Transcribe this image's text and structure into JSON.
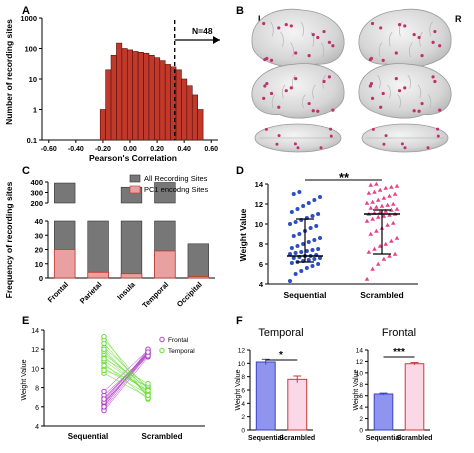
{
  "panel_letters": [
    "A",
    "B",
    "C",
    "D",
    "E",
    "F"
  ],
  "brain_panel": {
    "left_label": "L",
    "right_label": "R"
  },
  "chart_data": [
    {
      "panel": "A",
      "type": "bar",
      "xlabel": "Pearson's Correlation",
      "ylabel": "Number of recording sites",
      "yscale": "log",
      "ylim": [
        0.1,
        1000
      ],
      "xlim": [
        -0.65,
        0.65
      ],
      "x_ticks": [
        "-0.60",
        "-0.40",
        "-0.20",
        "0.00",
        "0.20",
        "0.40",
        "0.60"
      ],
      "y_ticks": [
        "0.1",
        "1",
        "10",
        "100",
        "1000"
      ],
      "bar_width": 0.04,
      "x": [
        -0.2,
        -0.16,
        -0.12,
        -0.08,
        -0.04,
        0.0,
        0.04,
        0.08,
        0.12,
        0.16,
        0.2,
        0.24,
        0.28,
        0.32,
        0.36,
        0.4,
        0.44,
        0.48,
        0.52
      ],
      "values": [
        1,
        20,
        60,
        150,
        100,
        90,
        80,
        75,
        70,
        60,
        50,
        40,
        30,
        25,
        20,
        10,
        6,
        3,
        1
      ],
      "threshold": 0.33,
      "annotation": "N=48",
      "color": "#c0392b"
    },
    {
      "panel": "C",
      "type": "bar",
      "ylabel": "Frequency of recording sites",
      "categories": [
        "Frontal",
        "Parietal",
        "Insula",
        "Temporal",
        "Occipital"
      ],
      "series": [
        {
          "name": "All Recording Sites",
          "values": [
            390,
            200,
            350,
            395,
            24
          ],
          "color": "#777777"
        },
        {
          "name": "PC1 encodng Sites",
          "values": [
            20,
            4,
            3,
            19,
            1
          ],
          "color": "#e8a0a0"
        }
      ],
      "broken_axis": {
        "lower_range": [
          0,
          40
        ],
        "upper_range": [
          200,
          400
        ]
      },
      "y_ticks": [
        "0",
        "10",
        "20",
        "30",
        "40",
        "200",
        "300",
        "400"
      ],
      "legend_position": "top-right"
    },
    {
      "panel": "D",
      "type": "scatter",
      "ylabel": "Weight Value",
      "categories": [
        "Sequential",
        "Scrambled"
      ],
      "ylim": [
        4,
        14
      ],
      "y_ticks": [
        "4",
        "6",
        "8",
        "10",
        "12",
        "14"
      ],
      "series": [
        {
          "name": "Sequential",
          "color": "#2e4cc4",
          "median": 6.8,
          "q1": 6.2,
          "q3": 10.5,
          "values": [
            4.3,
            5.0,
            5.3,
            5.6,
            5.8,
            6.0,
            6.1,
            6.2,
            6.3,
            6.4,
            6.5,
            6.6,
            6.6,
            6.7,
            6.8,
            6.8,
            6.9,
            7.0,
            7.1,
            7.2,
            7.3,
            7.4,
            7.5,
            7.6,
            7.8,
            8.0,
            8.2,
            8.4,
            8.6,
            8.8,
            9.0,
            9.3,
            9.6,
            9.8,
            10.0,
            10.2,
            10.4,
            10.6,
            10.8,
            11.0,
            11.2,
            11.5,
            11.8,
            12.1,
            12.4,
            12.7,
            13.0,
            13.2
          ]
        },
        {
          "name": "Scrambled",
          "color": "#e8408a",
          "median": 11.0,
          "q1": 7.0,
          "q3": 11.4,
          "values": [
            4.5,
            5.5,
            6.0,
            6.5,
            6.8,
            7.0,
            7.2,
            7.5,
            7.8,
            8.0,
            8.3,
            8.6,
            9.0,
            9.3,
            9.6,
            9.9,
            10.1,
            10.3,
            10.5,
            10.7,
            10.8,
            10.9,
            11.0,
            11.0,
            11.1,
            11.2,
            11.3,
            11.4,
            11.5,
            11.6,
            11.7,
            11.8,
            11.9,
            12.0,
            12.1,
            12.2,
            12.4,
            12.6,
            12.8,
            13.0,
            13.1,
            13.2,
            13.4,
            13.6,
            13.7,
            13.8,
            13.9,
            14.0
          ]
        }
      ],
      "significance": "**"
    },
    {
      "panel": "E",
      "type": "line",
      "ylabel": "Weight Value",
      "categories": [
        "Sequential",
        "Scrambled"
      ],
      "ylim": [
        4,
        14
      ],
      "y_ticks": [
        "4",
        "6",
        "8",
        "10",
        "12",
        "14"
      ],
      "series": [
        {
          "name": "Frontal",
          "color": "#b040c8",
          "pairs": [
            [
              5.8,
              11.5
            ],
            [
              6.1,
              11.6
            ],
            [
              6.3,
              11.7
            ],
            [
              6.4,
              11.5
            ],
            [
              6.6,
              11.8
            ],
            [
              6.9,
              11.6
            ],
            [
              7.2,
              11.4
            ],
            [
              7.6,
              11.9
            ],
            [
              5.6,
              11.2
            ],
            [
              6.0,
              12.0
            ],
            [
              6.5,
              11.3
            ],
            [
              6.8,
              11.7
            ]
          ]
        },
        {
          "name": "Temporal",
          "color": "#66dd33",
          "pairs": [
            [
              9.5,
              7.0
            ],
            [
              10.0,
              7.3
            ],
            [
              10.5,
              6.8
            ],
            [
              10.8,
              7.6
            ],
            [
              11.2,
              7.4
            ],
            [
              11.5,
              7.9
            ],
            [
              11.8,
              7.1
            ],
            [
              12.2,
              8.0
            ],
            [
              12.6,
              7.5
            ],
            [
              13.0,
              7.8
            ],
            [
              13.3,
              6.9
            ],
            [
              9.8,
              8.2
            ],
            [
              10.3,
              7.7
            ],
            [
              11.0,
              8.4
            ],
            [
              12.0,
              7.2
            ]
          ]
        }
      ],
      "legend_position": "top-right"
    },
    {
      "panel": "F",
      "type": "bar",
      "title": "Temporal",
      "ylabel": "Weight Value",
      "categories": [
        "Sequential",
        "Scrambled"
      ],
      "values": [
        10.2,
        7.6
      ],
      "errors": [
        0.4,
        0.5
      ],
      "ylim": [
        0,
        12
      ],
      "y_ticks": [
        "0",
        "2",
        "4",
        "6",
        "8",
        "10",
        "12"
      ],
      "colors": [
        "#8f95ee",
        "#fbd8e6"
      ],
      "edge_colors": [
        "#3a43c8",
        "#c83a3a"
      ],
      "significance": "*"
    },
    {
      "panel": "F",
      "type": "bar",
      "title": "Frontal",
      "ylabel": "Weight Value",
      "categories": [
        "Sequential",
        "Scrambled"
      ],
      "values": [
        6.3,
        11.6
      ],
      "errors": [
        0.15,
        0.2
      ],
      "ylim": [
        0,
        14
      ],
      "y_ticks": [
        "0",
        "2",
        "4",
        "6",
        "8",
        "10",
        "12",
        "14"
      ],
      "colors": [
        "#8f95ee",
        "#fbd8e6"
      ],
      "edge_colors": [
        "#3a43c8",
        "#c83a3a"
      ],
      "significance": "***"
    }
  ]
}
